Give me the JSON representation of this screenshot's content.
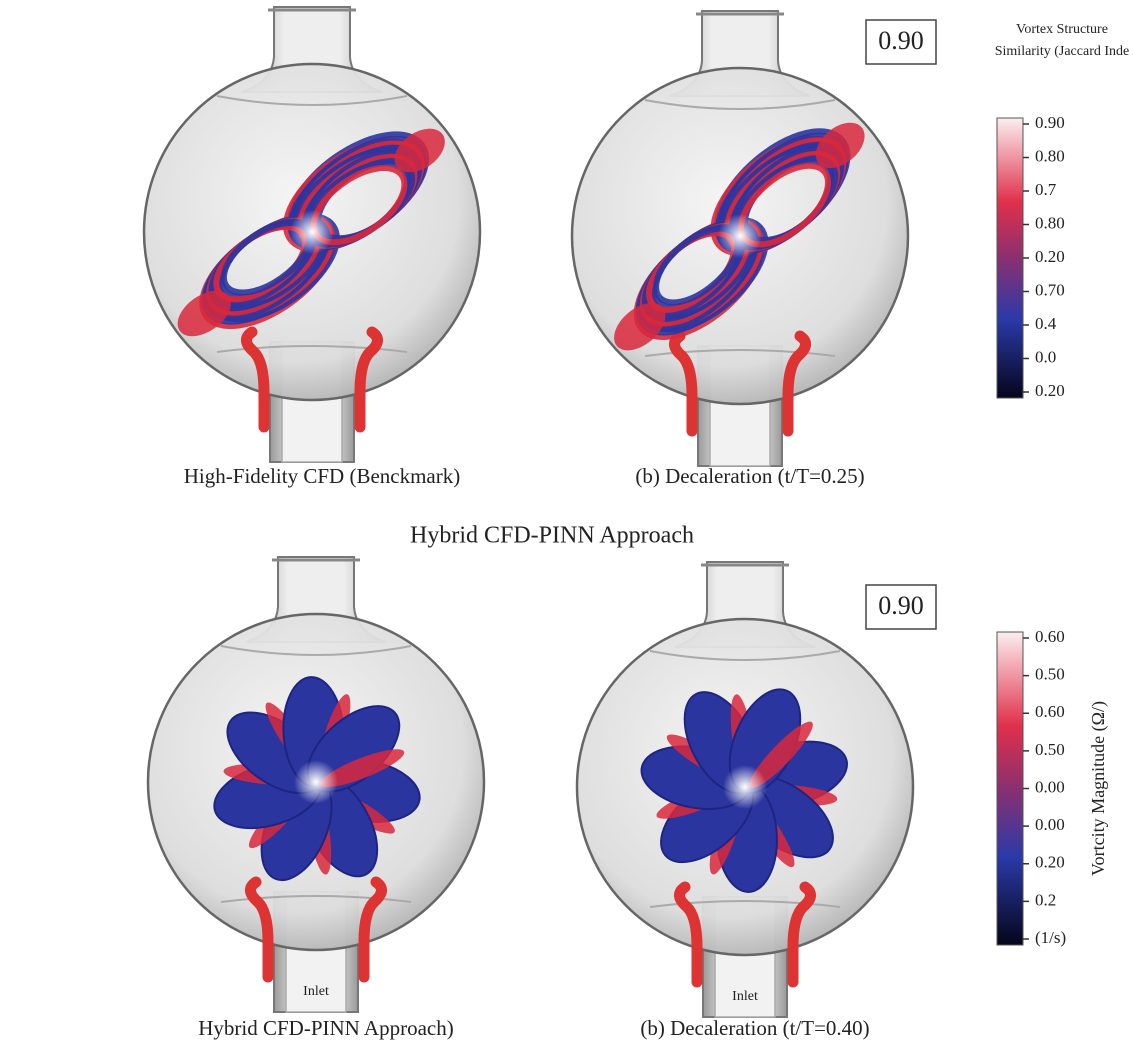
{
  "section_title": "Hybrid CFD-PINN Approach",
  "panels": [
    {
      "caption": "High-Fidelity CFD (Benckmark)"
    },
    {
      "caption": "(b) Decaleration (t/T=0.25)",
      "score": "0.90"
    },
    {
      "caption": "Hybrid CFD-PINN Approach)",
      "inlet": "Inlet"
    },
    {
      "caption": "(b) Decaleration (t/T=0.40)",
      "score": "0.90",
      "inlet": "Inlet"
    }
  ],
  "colorbars": [
    {
      "title": [
        "Vortex Structure",
        "Similarity (Jaccard Inde"
      ],
      "ticks": [
        "0.90",
        "0.80",
        "0.7",
        "0.80",
        "0.20",
        "0.70",
        "0.4",
        "0.0",
        "0.20"
      ]
    },
    {
      "title": [
        "Vortcity Magnitude (Ω/)"
      ],
      "ticks": [
        "0.60",
        "0.50",
        "0.60",
        "0.50",
        "0.00",
        "0.00",
        "0.20",
        "0.2",
        "(1/s)"
      ]
    }
  ]
}
